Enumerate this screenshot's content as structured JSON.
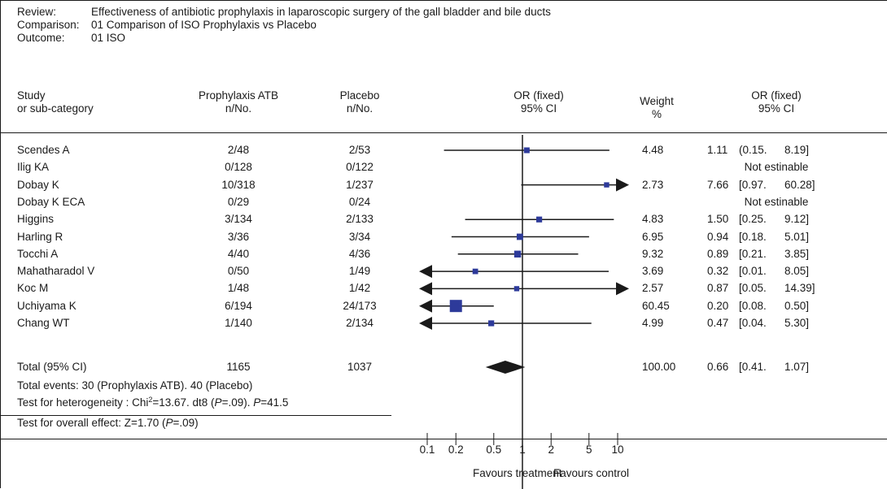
{
  "header": {
    "review_label": "Review:",
    "review_text": "Effectiveness of antibiotic prophylaxis in laparoscopic surgery of the gall bladder and bile ducts",
    "comparison_label": "Comparison:",
    "comparison_text": "01 Comparison of ISO Prophylaxis vs Placebo",
    "outcome_label": "Outcome:",
    "outcome_text": "01 ISO"
  },
  "columns": {
    "study_1": "Study",
    "study_2": "or sub-category",
    "treat_1": "Prophylaxis ATB",
    "treat_2": "n/No.",
    "control_1": "Placebo",
    "control_2": "n/No.",
    "plot_1": "OR (fixed)",
    "plot_2": "95% CI",
    "weight_1": "Weight",
    "weight_2": "%",
    "orci_1": "OR (fixed)",
    "orci_2": "95% CI"
  },
  "chart_data": {
    "type": "forest",
    "scale": "log",
    "xlim": [
      0.1,
      10
    ],
    "ticks": [
      0.1,
      0.2,
      0.5,
      1,
      2,
      5,
      10
    ],
    "tick_labels": [
      "0.1",
      "0.2",
      "0.5",
      "1",
      "2",
      "5",
      "10"
    ],
    "favours_left": "Favours treatment",
    "favours_right": "Favours control",
    "studies": [
      {
        "name": "Scendes A",
        "treat": "2/48",
        "control": "2/53",
        "weight": "4.48",
        "or": "1.11",
        "ci": "(0.15.",
        "hi_txt": "8.19]",
        "or_val": 1.11,
        "lo": 0.15,
        "hi": 8.19
      },
      {
        "name": "Ilig KA",
        "treat": "0/128",
        "control": "0/122",
        "weight": "",
        "note": "Not estinable"
      },
      {
        "name": "Dobay K",
        "treat": "10/318",
        "control": "1/237",
        "weight": "2.73",
        "or": "7.66",
        "ci": "[0.97.",
        "hi_txt": "60.28]",
        "or_val": 7.66,
        "lo": 0.97,
        "hi": 60.28
      },
      {
        "name": "Dobay K ECA",
        "treat": "0/29",
        "control": "0/24",
        "weight": "",
        "note": "Not estinable"
      },
      {
        "name": "Higgins",
        "treat": "3/134",
        "control": "2/133",
        "weight": "4.83",
        "or": "1.50",
        "ci": "[0.25.",
        "hi_txt": "9.12]",
        "or_val": 1.5,
        "lo": 0.25,
        "hi": 9.12
      },
      {
        "name": "Harling R",
        "treat": "3/36",
        "control": "3/34",
        "weight": "6.95",
        "or": "0.94",
        "ci": "[0.18.",
        "hi_txt": "5.01]",
        "or_val": 0.94,
        "lo": 0.18,
        "hi": 5.01
      },
      {
        "name": "Tocchi A",
        "treat": "4/40",
        "control": "4/36",
        "weight": "9.32",
        "or": "0.89",
        "ci": "[0.21.",
        "hi_txt": "3.85]",
        "or_val": 0.89,
        "lo": 0.21,
        "hi": 3.85
      },
      {
        "name": "Mahatharadol V",
        "treat": "0/50",
        "control": "1/49",
        "weight": "3.69",
        "or": "0.32",
        "ci": "[0.01.",
        "hi_txt": "8.05]",
        "or_val": 0.32,
        "lo": 0.01,
        "hi": 8.05
      },
      {
        "name": "Koc M",
        "treat": "1/48",
        "control": "1/42",
        "weight": "2.57",
        "or": "0.87",
        "ci": "[0.05.",
        "hi_txt": "14.39]",
        "or_val": 0.87,
        "lo": 0.05,
        "hi": 14.39
      },
      {
        "name": "Uchiyama K",
        "treat": "6/194",
        "control": "24/173",
        "weight": "60.45",
        "or": "0.20",
        "ci": "[0.08.",
        "hi_txt": "0.50]",
        "or_val": 0.2,
        "lo": 0.08,
        "hi": 0.5
      },
      {
        "name": "Chang WT",
        "treat": "1/140",
        "control": "2/134",
        "weight": "4.99",
        "or": "0.47",
        "ci": "[0.04.",
        "hi_txt": "5.30]",
        "or_val": 0.47,
        "lo": 0.04,
        "hi": 5.3
      }
    ],
    "total": {
      "name": "Total (95% CI)",
      "treat": "1165",
      "control": "1037",
      "weight": "100.00",
      "or": "0.66",
      "ci": "[0.41.",
      "hi_txt": "1.07]",
      "or_val": 0.66,
      "lo": 0.41,
      "hi": 1.07
    }
  },
  "footer": {
    "events": "Total events: 30 (Prophylaxis ATB). 40 (Placebo)",
    "het_a": "Test for heterogeneity : Chi",
    "het_sup": "2",
    "het_b": "=13.67. dt8 (",
    "het_p1": "P",
    "het_c": "=.09). ",
    "het_p2": "P",
    "het_d": "=41.5",
    "overall_a": "Test for overall effect: Z=1.70 (",
    "overall_p": "P",
    "overall_b": "=.09)"
  },
  "colors": {
    "marker": "#2d3a9a",
    "line": "#1a1a1a"
  }
}
